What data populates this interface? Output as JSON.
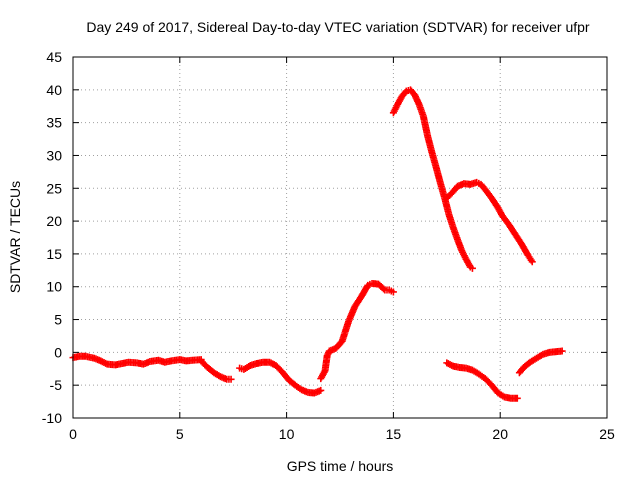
{
  "chart_data": {
    "type": "scatter",
    "title": "Day 249 of 2017, Sidereal Day-to-day VTEC variation (SDTVAR) for receiver ufpr",
    "xlabel": "GPS time / hours",
    "ylabel": "SDTVAR / TECUs",
    "xlim": [
      0,
      25
    ],
    "ylim": [
      -10,
      45
    ],
    "x_ticks": [
      0,
      5,
      10,
      15,
      20,
      25
    ],
    "y_ticks": [
      -10,
      -5,
      0,
      5,
      10,
      15,
      20,
      25,
      30,
      35,
      40,
      45
    ],
    "grid": true,
    "legend": "none",
    "marker": "+",
    "series_color": "#ff0000",
    "series": [
      {
        "name": "segment-1",
        "x": [
          0.0,
          0.3,
          0.6,
          1.0,
          1.3,
          1.6,
          2.0,
          2.3,
          2.6,
          3.0,
          3.3,
          3.6,
          4.0,
          4.3,
          4.6,
          5.0,
          5.3,
          5.6,
          6.0
        ],
        "y": [
          -0.8,
          -0.6,
          -0.6,
          -0.9,
          -1.3,
          -1.8,
          -1.9,
          -1.7,
          -1.5,
          -1.6,
          -1.8,
          -1.4,
          -1.2,
          -1.5,
          -1.3,
          -1.1,
          -1.3,
          -1.2,
          -1.1
        ]
      },
      {
        "name": "segment-2",
        "x": [
          6.0,
          6.3,
          6.6,
          6.9,
          7.2,
          7.4
        ],
        "y": [
          -1.3,
          -2.3,
          -3.1,
          -3.7,
          -4.1,
          -4.1
        ]
      },
      {
        "name": "segment-3",
        "x": [
          7.8,
          8.0,
          8.3,
          8.6,
          8.9,
          9.2,
          9.5,
          9.8,
          10.1,
          10.4,
          10.7,
          11.0,
          11.3,
          11.6
        ],
        "y": [
          -2.4,
          -2.6,
          -2.0,
          -1.7,
          -1.5,
          -1.5,
          -2.0,
          -3.0,
          -4.2,
          -5.0,
          -5.7,
          -6.1,
          -6.2,
          -5.8
        ]
      },
      {
        "name": "segment-4",
        "x": [
          11.6,
          11.8,
          11.9,
          12.0,
          12.3,
          12.6,
          12.9,
          13.2,
          13.5,
          13.8,
          14.0,
          14.3,
          14.6,
          14.8,
          15.0
        ],
        "y": [
          -4.0,
          -2.8,
          -0.5,
          0.2,
          0.6,
          1.7,
          4.7,
          7.0,
          8.5,
          10.2,
          10.5,
          10.4,
          9.5,
          9.5,
          9.2
        ]
      },
      {
        "name": "segment-5",
        "x": [
          15.0,
          15.2,
          15.4,
          15.6,
          15.8,
          16.0,
          16.2,
          16.4,
          16.6,
          16.8,
          17.0,
          17.2,
          17.4,
          17.6,
          17.8,
          18.0,
          18.2,
          18.4,
          18.6,
          18.7
        ],
        "y": [
          36.5,
          37.8,
          39.0,
          39.8,
          40.0,
          39.2,
          37.8,
          36.0,
          33.0,
          30.5,
          28.2,
          25.8,
          23.5,
          21.0,
          19.0,
          17.2,
          15.5,
          14.2,
          13.0,
          12.8
        ]
      },
      {
        "name": "segment-6",
        "x": [
          17.5,
          17.8,
          18.0,
          18.3,
          18.6,
          18.9,
          19.1,
          19.3,
          19.6,
          19.9,
          20.1,
          20.4,
          20.7,
          21.0,
          21.3,
          21.5
        ],
        "y": [
          23.5,
          24.5,
          25.3,
          25.7,
          25.6,
          25.9,
          25.6,
          24.8,
          23.5,
          22.0,
          20.8,
          19.5,
          18.0,
          16.5,
          14.8,
          13.8
        ]
      },
      {
        "name": "segment-7",
        "x": [
          17.5,
          17.8,
          18.1,
          18.4,
          18.7,
          19.0,
          19.3,
          19.6,
          19.9,
          20.2,
          20.5,
          20.8
        ],
        "y": [
          -1.6,
          -2.1,
          -2.3,
          -2.4,
          -2.7,
          -3.3,
          -4.0,
          -5.0,
          -6.2,
          -6.8,
          -7.0,
          -7.0
        ]
      },
      {
        "name": "segment-8",
        "x": [
          20.9,
          21.1,
          21.4,
          21.7,
          22.0,
          22.3,
          22.6,
          22.9
        ],
        "y": [
          -3.1,
          -2.3,
          -1.5,
          -0.9,
          -0.3,
          0.0,
          0.1,
          0.2
        ]
      }
    ]
  }
}
